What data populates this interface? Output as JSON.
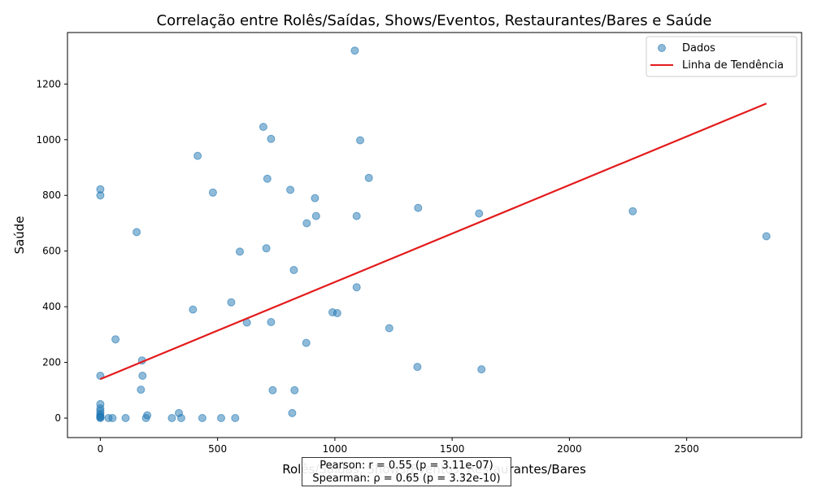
{
  "chart_data": {
    "type": "scatter",
    "title": "Correlação entre Rolês/Saídas, Shows/Eventos, Restaurantes/Bares e Saúde",
    "xlabel": "Rolês/Saídas, Shows/Eventos, Restaurantes/Bares",
    "ylabel": "Saúde",
    "xlim": [
      -140,
      2990
    ],
    "ylim": [
      -70,
      1385
    ],
    "xticks": [
      0,
      500,
      1000,
      1500,
      2000,
      2500
    ],
    "yticks": [
      0,
      200,
      400,
      600,
      800,
      1000,
      1200
    ],
    "grid": false,
    "legend_position": "top-right",
    "series": [
      {
        "name": "Dados",
        "color": "#1f77b4",
        "points": [
          [
            0,
            0
          ],
          [
            0,
            3
          ],
          [
            0,
            5
          ],
          [
            0,
            8
          ],
          [
            0,
            15
          ],
          [
            0,
            25
          ],
          [
            0,
            35
          ],
          [
            0,
            50
          ],
          [
            0,
            152
          ],
          [
            0,
            800
          ],
          [
            0,
            822
          ],
          [
            35,
            0
          ],
          [
            52,
            0
          ],
          [
            65,
            283
          ],
          [
            108,
            0
          ],
          [
            155,
            668
          ],
          [
            173,
            102
          ],
          [
            178,
            207
          ],
          [
            180,
            152
          ],
          [
            195,
            0
          ],
          [
            200,
            10
          ],
          [
            305,
            0
          ],
          [
            335,
            18
          ],
          [
            345,
            0
          ],
          [
            395,
            390
          ],
          [
            415,
            942
          ],
          [
            435,
            0
          ],
          [
            480,
            810
          ],
          [
            515,
            0
          ],
          [
            558,
            416
          ],
          [
            575,
            0
          ],
          [
            595,
            598
          ],
          [
            625,
            343
          ],
          [
            695,
            1046
          ],
          [
            708,
            610
          ],
          [
            712,
            860
          ],
          [
            728,
            1003
          ],
          [
            728,
            345
          ],
          [
            735,
            100
          ],
          [
            810,
            820
          ],
          [
            818,
            18
          ],
          [
            825,
            532
          ],
          [
            828,
            100
          ],
          [
            878,
            270
          ],
          [
            880,
            700
          ],
          [
            915,
            790
          ],
          [
            920,
            726
          ],
          [
            990,
            380
          ],
          [
            1010,
            377
          ],
          [
            1085,
            1320
          ],
          [
            1093,
            470
          ],
          [
            1093,
            726
          ],
          [
            1108,
            998
          ],
          [
            1145,
            863
          ],
          [
            1232,
            323
          ],
          [
            1352,
            184
          ],
          [
            1355,
            755
          ],
          [
            1615,
            735
          ],
          [
            1625,
            175
          ],
          [
            2270,
            743
          ],
          [
            2840,
            653
          ]
        ]
      }
    ],
    "trendline": {
      "name": "Linha de Tendência",
      "color": "#e31a1c",
      "x": [
        0,
        2840
      ],
      "y": [
        140,
        1130
      ]
    },
    "annotation": {
      "pearson": "Pearson: r = 0.55 (p = 3.11e-07)",
      "spearman": "Spearman: ρ = 0.65 (p = 3.32e-10)"
    }
  }
}
